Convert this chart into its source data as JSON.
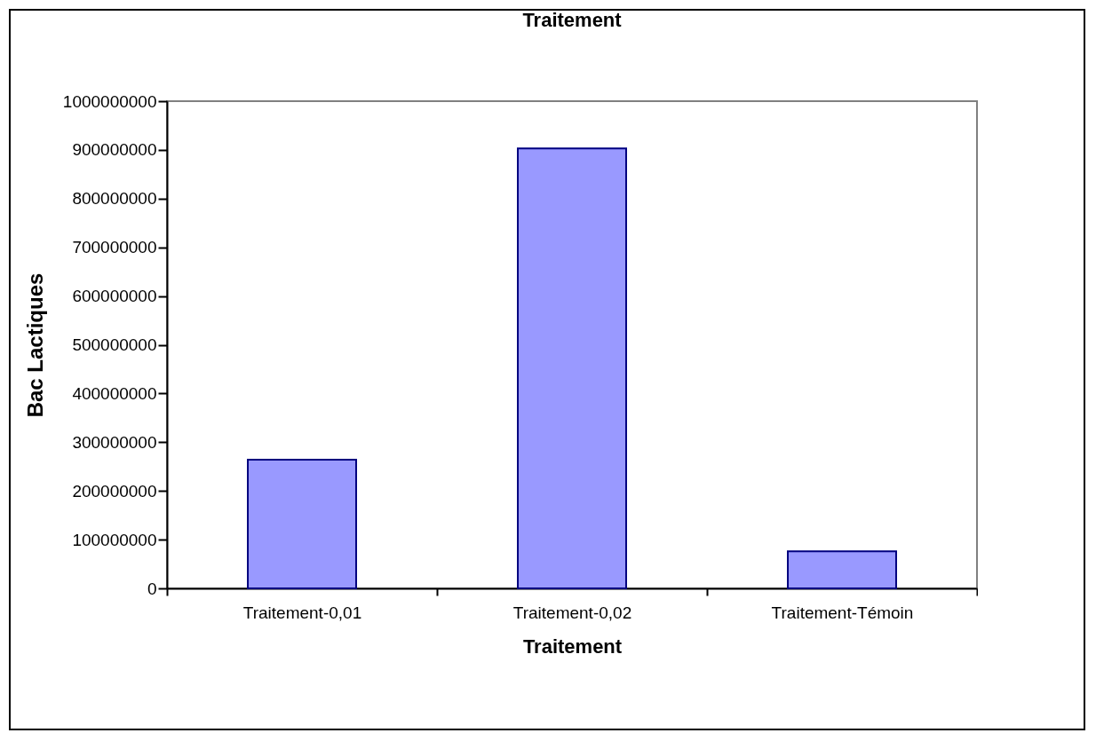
{
  "chart_data": {
    "type": "bar",
    "title": "Traitement",
    "xlabel": "Traitement",
    "ylabel": "Bac Lactiques",
    "categories": [
      "Traitement-0,01",
      "Traitement-0,02",
      "Traitement-Témoin"
    ],
    "values": [
      264000000,
      903000000,
      76000000
    ],
    "color": "#9999ff",
    "ylim": [
      0,
      1000000000
    ],
    "yticks": [
      0,
      100000000,
      200000000,
      300000000,
      400000000,
      500000000,
      600000000,
      700000000,
      800000000,
      900000000,
      1000000000
    ]
  }
}
